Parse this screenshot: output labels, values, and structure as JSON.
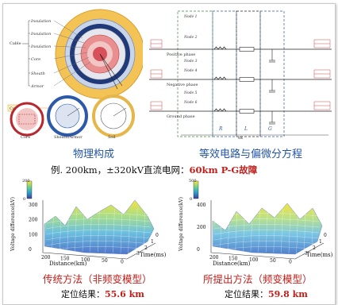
{
  "top_left": {
    "cable_label": "Cable",
    "layers": [
      "Insulation",
      "Insulation",
      "Insulation",
      "Core",
      "Sheath",
      "Armor"
    ],
    "core_marker": "Core",
    "small_labels": [
      "Core",
      "Sheath/Armor",
      "Soil"
    ],
    "caption": "物理构成"
  },
  "top_right": {
    "phase_labels": [
      "Positive phase",
      "Negative phase",
      "Ground phase"
    ],
    "node_labels": [
      "Node 1",
      "Node 2",
      "Node 3",
      "Node 4",
      "Node 5",
      "Node 6"
    ],
    "component_labels": [
      "R",
      "L",
      "G",
      "dx"
    ],
    "caption": "等效电路与偏微分方程"
  },
  "example": {
    "prefix": "例. 200km，±320kV直流电网：",
    "fault": "60km P-G故障"
  },
  "plot_left": {
    "ylabel": "Voltage difference(kV)",
    "xlabel": "Distance(km)",
    "tlabel": "Time(ms)",
    "dist_ticks": [
      "200",
      "150",
      "100",
      "50",
      "0"
    ],
    "time_ticks": [
      "0",
      "1",
      "2",
      "3"
    ],
    "v_ticks": [
      "300",
      "200",
      "100",
      "0"
    ],
    "cbar_ticks": [
      "200",
      "0"
    ],
    "caption": "传统方法（非频变模型）",
    "result_prefix": "定位结果：",
    "result_value": "55.6 km"
  },
  "plot_right": {
    "ylabel": "Voltage difference(kV)",
    "xlabel": "Distance(km)",
    "tlabel": "Time(ms)",
    "dist_ticks": [
      "200",
      "150",
      "100",
      "50",
      "0"
    ],
    "time_ticks": [
      "0",
      "1",
      "2",
      "3"
    ],
    "v_ticks": [
      "400",
      "200",
      "0"
    ],
    "cbar_ticks": [
      "500",
      "0"
    ],
    "caption": "所提出方法（频变模型）",
    "result_prefix": "定位结果：",
    "result_value": "59.8 km"
  },
  "colors": {
    "caption_blue": "#2355a5",
    "highlight_red": "#c0201c"
  }
}
